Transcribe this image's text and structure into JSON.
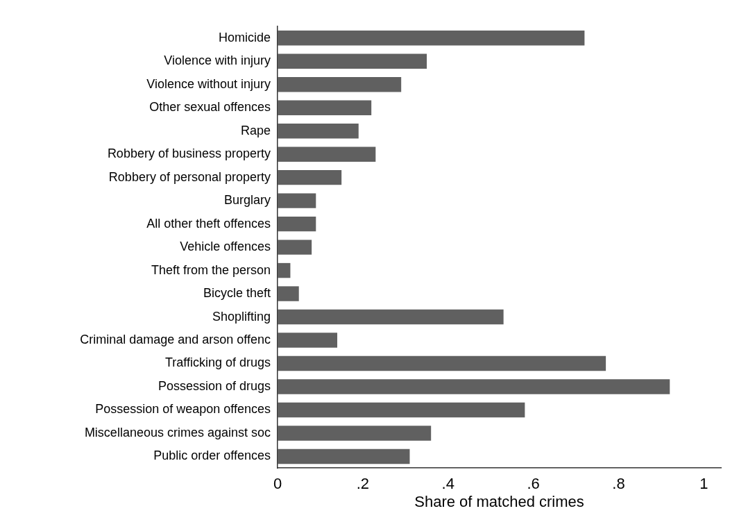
{
  "chart_data": {
    "type": "bar",
    "orientation": "horizontal",
    "xlabel": "Share of matched crimes",
    "categories": [
      "Homicide",
      "Violence with injury",
      "Violence without injury",
      "Other sexual offences",
      "Rape",
      "Robbery of business property",
      "Robbery of personal property",
      "Burglary",
      "All other theft offences",
      "Vehicle offences",
      "Theft from the person",
      "Bicycle theft",
      "Shoplifting",
      "Criminal damage and arson offenc",
      "Trafficking of drugs",
      "Possession of drugs",
      "Possession of weapon offences",
      "Miscellaneous crimes against soc",
      "Public order offences"
    ],
    "values": [
      0.72,
      0.35,
      0.29,
      0.22,
      0.19,
      0.23,
      0.15,
      0.09,
      0.09,
      0.08,
      0.03,
      0.05,
      0.53,
      0.14,
      0.77,
      0.92,
      0.58,
      0.36,
      0.31
    ],
    "color": "#606060",
    "xlim": [
      0,
      1.04
    ],
    "xticks": [
      {
        "value": 0,
        "label": "0"
      },
      {
        "value": 0.2,
        "label": ".2"
      },
      {
        "value": 0.4,
        "label": ".4"
      },
      {
        "value": 0.6,
        "label": ".6"
      },
      {
        "value": 0.8,
        "label": ".8"
      },
      {
        "value": 1,
        "label": "1"
      }
    ],
    "grid": false,
    "legend": false
  }
}
